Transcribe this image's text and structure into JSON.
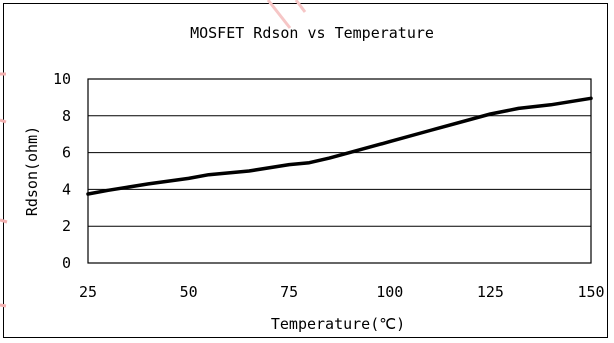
{
  "chart_data": {
    "type": "line",
    "title": "MOSFET Rdson vs Temperature",
    "xlabel": "Temperature(℃)",
    "ylabel": "Rdson(ohm)",
    "xlim": [
      25,
      150
    ],
    "ylim": [
      0,
      10
    ],
    "x_ticks": [
      25,
      50,
      75,
      100,
      125,
      150
    ],
    "y_ticks": [
      0,
      2,
      4,
      6,
      8,
      10
    ],
    "grid": "horizontal",
    "legend": "none",
    "series": [
      {
        "color": "#000000",
        "x": [
          25,
          30,
          40,
          50,
          55,
          65,
          75,
          80,
          85,
          90,
          100,
          110,
          125,
          132,
          140,
          150
        ],
        "y": [
          3.75,
          3.95,
          4.3,
          4.6,
          4.8,
          5.0,
          5.35,
          5.45,
          5.7,
          6.0,
          6.6,
          7.2,
          8.1,
          8.4,
          8.6,
          8.95
        ]
      }
    ]
  }
}
